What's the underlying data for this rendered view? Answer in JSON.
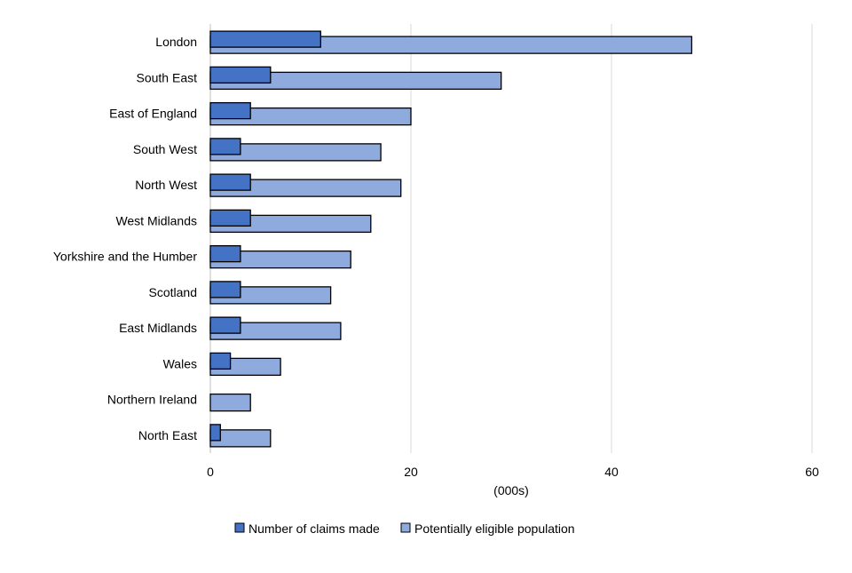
{
  "chart_data": {
    "type": "bar",
    "orientation": "horizontal",
    "categories": [
      "London",
      "South East",
      "East of England",
      "South West",
      "North West",
      "West Midlands",
      "Yorkshire and the Humber",
      "Scotland",
      "East Midlands",
      "Wales",
      "Northern Ireland",
      "North East"
    ],
    "series": [
      {
        "name": "Number of claims made",
        "color": "#4472c4",
        "values": [
          11,
          6,
          4,
          3,
          4,
          4,
          3,
          3,
          3,
          2,
          0,
          1
        ]
      },
      {
        "name": "Potentially eligible population",
        "color": "#8faadc",
        "values": [
          48,
          29,
          20,
          17,
          19,
          16,
          14,
          12,
          13,
          7,
          4,
          6
        ]
      }
    ],
    "xlabel": "(000s)",
    "xlim": [
      0,
      60
    ],
    "xticks": [
      0,
      20,
      40,
      60
    ],
    "grid": true,
    "legend": "bottom"
  }
}
